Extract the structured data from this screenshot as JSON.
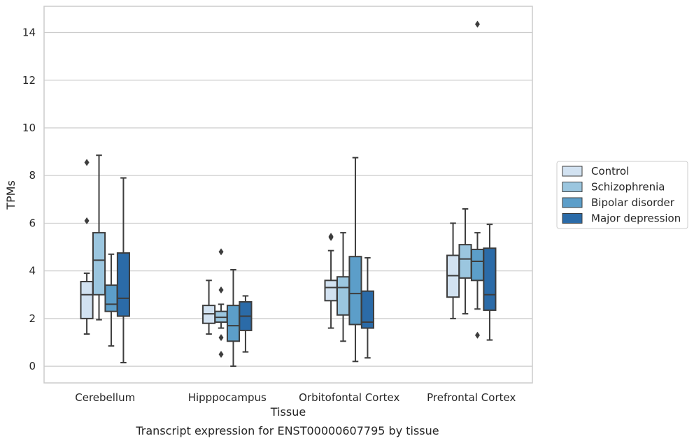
{
  "chart_data": {
    "type": "box",
    "xlabel": "Tissue",
    "ylabel": "TPMs",
    "caption": "Transcript expression for ENST00000607795 by tissue",
    "ylim": [
      -0.7,
      15.1
    ],
    "yticks": [
      0,
      2,
      4,
      6,
      8,
      10,
      12,
      14
    ],
    "ytick_labels": [
      "0",
      "2",
      "4",
      "6",
      "8",
      "10",
      "12",
      "14"
    ],
    "grid": "horizontal",
    "legend_position": "right",
    "categories": [
      "Cerebellum",
      "Hipppocampus",
      "Orbitofontal Cortex",
      "Prefrontal Cortex"
    ],
    "series": [
      {
        "name": "Control",
        "color": "#d2e2f1",
        "boxes": [
          {
            "whisker_low": 1.35,
            "q1": 2.0,
            "median": 3.0,
            "q3": 3.55,
            "whisker_high": 3.9,
            "outliers": [
              6.1,
              8.55
            ]
          },
          {
            "whisker_low": 1.35,
            "q1": 1.8,
            "median": 2.2,
            "q3": 2.55,
            "whisker_high": 3.6,
            "outliers": []
          },
          {
            "whisker_low": 1.6,
            "q1": 2.75,
            "median": 3.3,
            "q3": 3.6,
            "whisker_high": 4.85,
            "outliers": [
              5.4,
              5.45
            ]
          },
          {
            "whisker_low": 2.0,
            "q1": 2.9,
            "median": 3.8,
            "q3": 4.65,
            "whisker_high": 6.0,
            "outliers": []
          }
        ]
      },
      {
        "name": "Schizophrenia",
        "color": "#9bc6df",
        "boxes": [
          {
            "whisker_low": 1.95,
            "q1": 3.0,
            "median": 4.45,
            "q3": 5.6,
            "whisker_high": 8.85,
            "outliers": []
          },
          {
            "whisker_low": 1.6,
            "q1": 1.85,
            "median": 2.05,
            "q3": 2.3,
            "whisker_high": 2.6,
            "outliers": [
              4.8,
              3.2,
              1.2,
              0.5
            ]
          },
          {
            "whisker_low": 1.05,
            "q1": 2.15,
            "median": 3.3,
            "q3": 3.75,
            "whisker_high": 5.6,
            "outliers": []
          },
          {
            "whisker_low": 2.2,
            "q1": 3.7,
            "median": 4.5,
            "q3": 5.1,
            "whisker_high": 6.6,
            "outliers": []
          }
        ]
      },
      {
        "name": "Bipolar disorder",
        "color": "#5c9ec9",
        "boxes": [
          {
            "whisker_low": 0.85,
            "q1": 2.3,
            "median": 2.6,
            "q3": 3.4,
            "whisker_high": 4.7,
            "outliers": []
          },
          {
            "whisker_low": 0.0,
            "q1": 1.05,
            "median": 1.7,
            "q3": 2.55,
            "whisker_high": 4.05,
            "outliers": []
          },
          {
            "whisker_low": 0.2,
            "q1": 1.75,
            "median": 3.05,
            "q3": 4.6,
            "whisker_high": 8.75,
            "outliers": []
          },
          {
            "whisker_low": 2.4,
            "q1": 3.6,
            "median": 4.4,
            "q3": 4.9,
            "whisker_high": 5.6,
            "outliers": [
              1.3,
              14.35
            ]
          }
        ]
      },
      {
        "name": "Major depression",
        "color": "#2b6ba8",
        "boxes": [
          {
            "whisker_low": 0.15,
            "q1": 2.1,
            "median": 2.85,
            "q3": 4.75,
            "whisker_high": 7.9,
            "outliers": []
          },
          {
            "whisker_low": 0.6,
            "q1": 1.5,
            "median": 2.1,
            "q3": 2.7,
            "whisker_high": 2.95,
            "outliers": []
          },
          {
            "whisker_low": 0.35,
            "q1": 1.6,
            "median": 1.85,
            "q3": 3.15,
            "whisker_high": 4.55,
            "outliers": []
          },
          {
            "whisker_low": 1.1,
            "q1": 2.35,
            "median": 3.0,
            "q3": 4.95,
            "whisker_high": 5.95,
            "outliers": []
          }
        ]
      }
    ]
  }
}
